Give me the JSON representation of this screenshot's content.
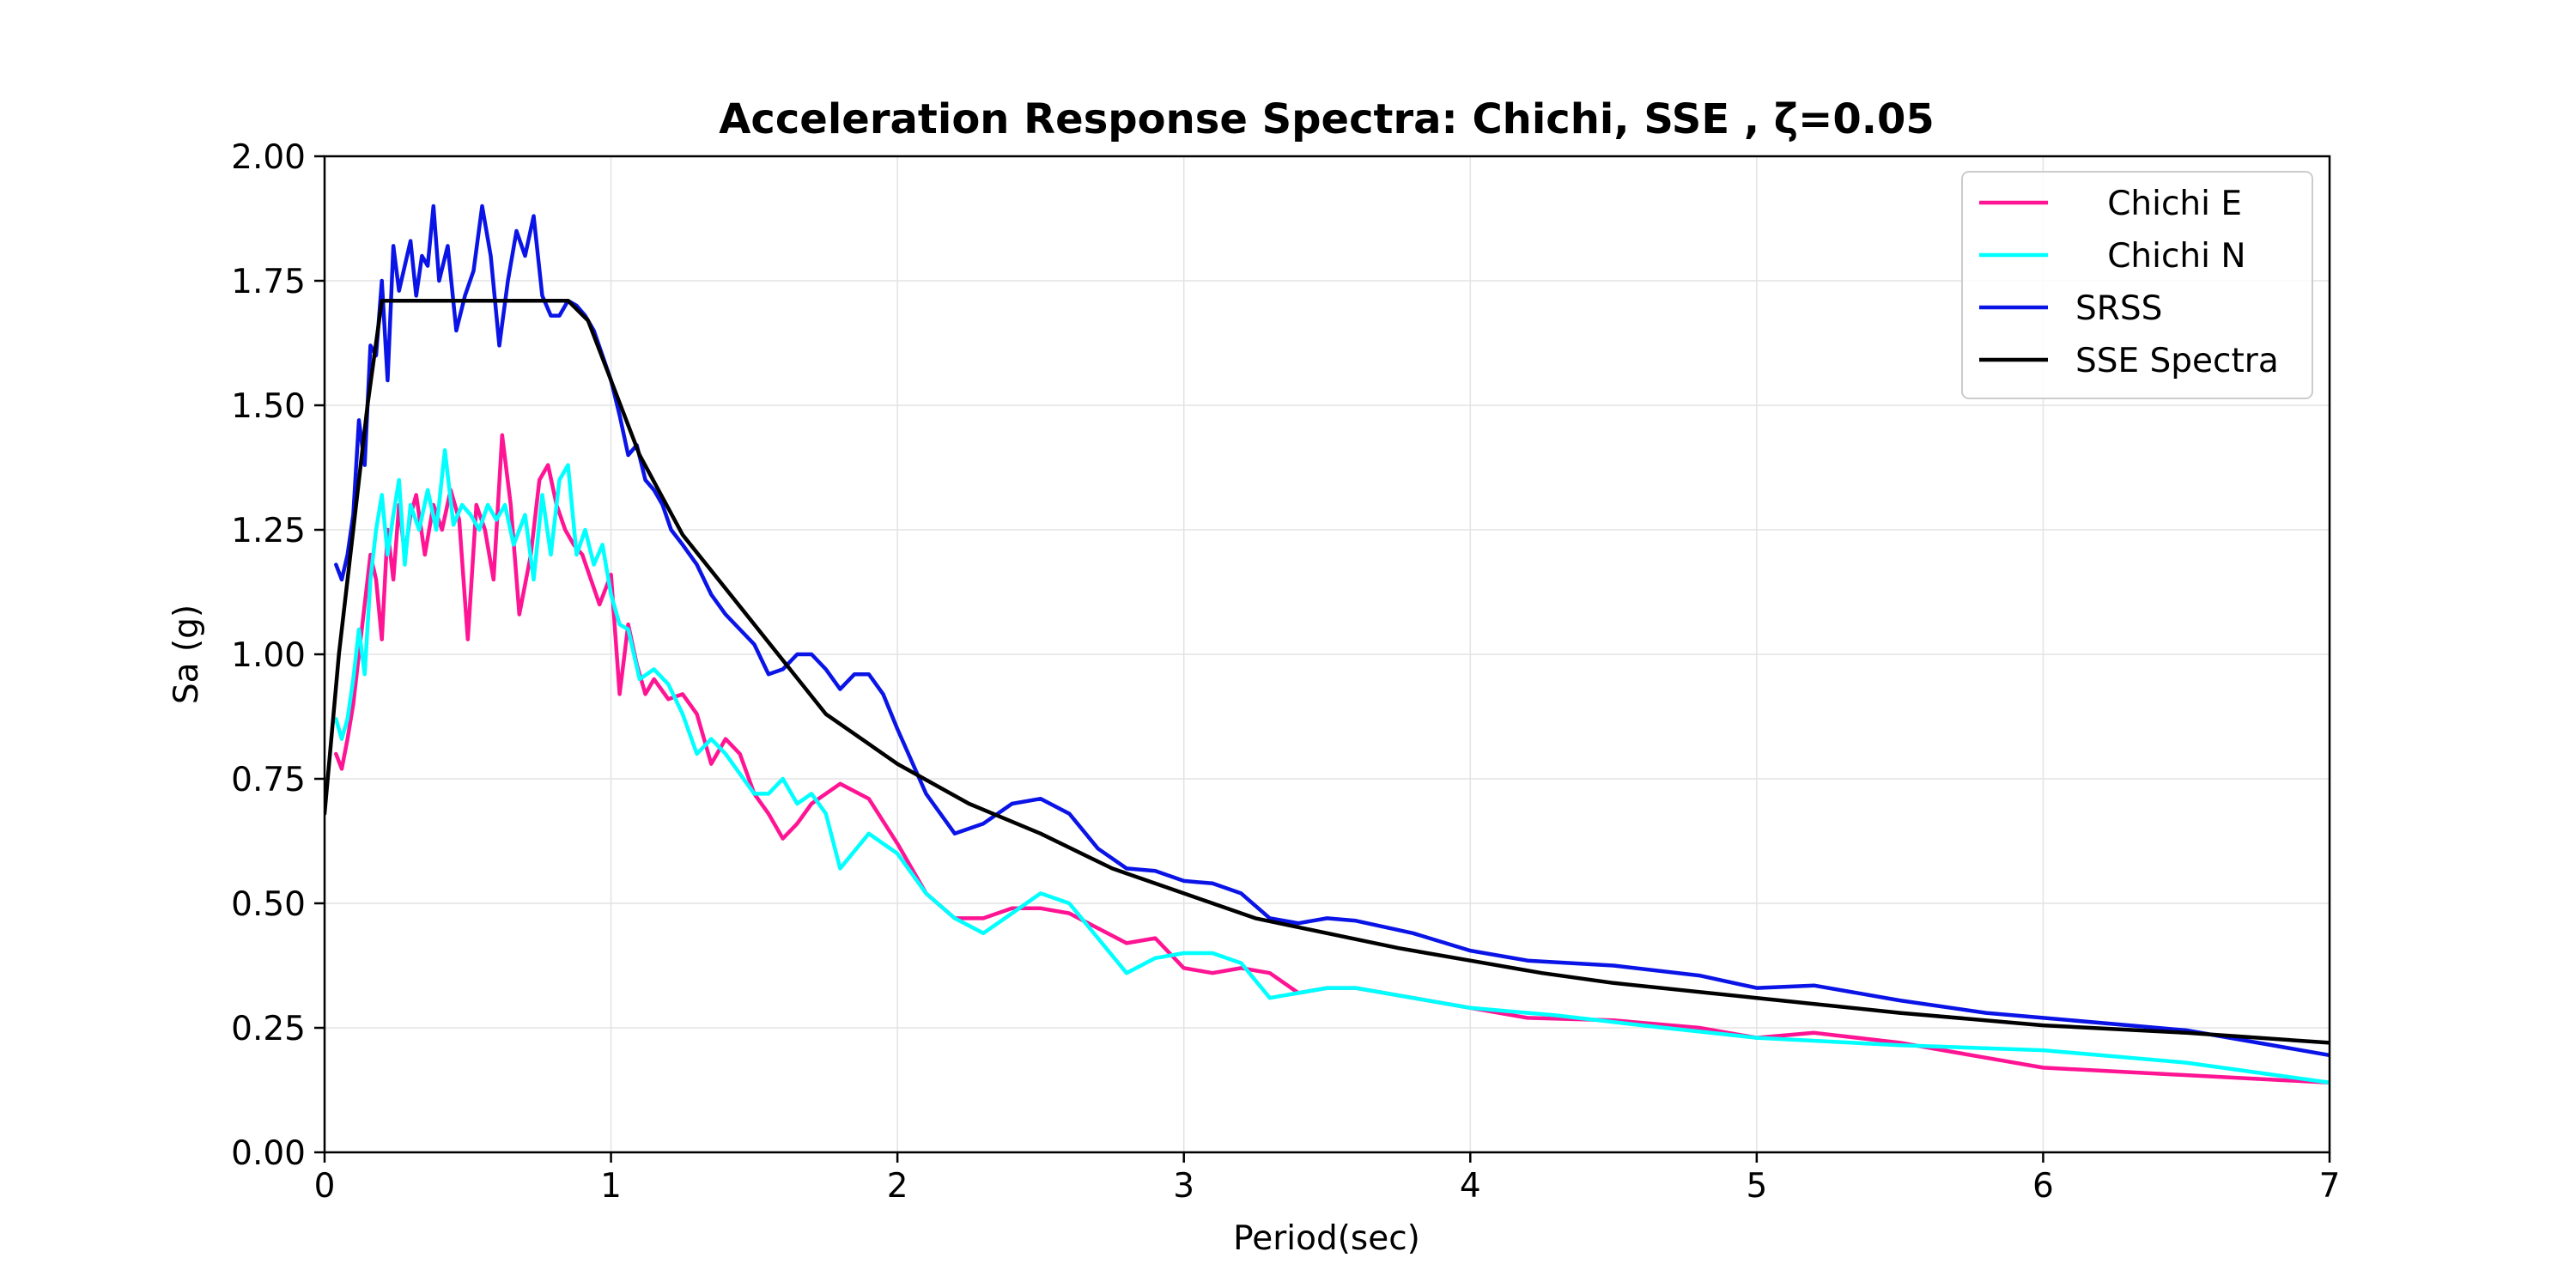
{
  "chart_data": {
    "type": "line",
    "title": "Acceleration Response Spectra:    Chichi, SSE , ζ=0.05",
    "xlabel": "Period(sec)",
    "ylabel": "Sa (g)",
    "xlim": [
      0,
      7
    ],
    "ylim": [
      0,
      2
    ],
    "xticks": [
      0,
      1,
      2,
      3,
      4,
      5,
      6,
      7
    ],
    "xtick_labels": [
      "0",
      "1",
      "2",
      "3",
      "4",
      "5",
      "6",
      "7"
    ],
    "yticks": [
      0,
      0.25,
      0.5,
      0.75,
      1.0,
      1.25,
      1.5,
      1.75,
      2.0
    ],
    "ytick_labels": [
      "0.00",
      "0.25",
      "0.50",
      "0.75",
      "1.00",
      "1.25",
      "1.50",
      "1.75",
      "2.00"
    ],
    "grid": true,
    "legend_position": "top-right",
    "series": [
      {
        "name": "   Chichi E",
        "color": "#ff1493",
        "x": [
          0.04,
          0.06,
          0.08,
          0.1,
          0.12,
          0.14,
          0.16,
          0.18,
          0.2,
          0.22,
          0.24,
          0.26,
          0.28,
          0.3,
          0.32,
          0.35,
          0.38,
          0.41,
          0.44,
          0.47,
          0.5,
          0.53,
          0.56,
          0.59,
          0.62,
          0.65,
          0.68,
          0.72,
          0.75,
          0.78,
          0.81,
          0.84,
          0.87,
          0.9,
          0.93,
          0.96,
          1.0,
          1.03,
          1.06,
          1.09,
          1.12,
          1.15,
          1.2,
          1.25,
          1.3,
          1.35,
          1.4,
          1.45,
          1.5,
          1.55,
          1.6,
          1.65,
          1.7,
          1.8,
          1.9,
          2.0,
          2.1,
          2.2,
          2.3,
          2.4,
          2.5,
          2.6,
          2.7,
          2.8,
          2.9,
          3.0,
          3.1,
          3.2,
          3.3,
          3.4,
          3.5,
          3.6,
          3.8,
          4.0,
          4.2,
          4.5,
          4.8,
          5.0,
          5.2,
          5.5,
          5.8,
          6.0,
          6.5,
          7.0
        ],
        "y": [
          0.8,
          0.77,
          0.83,
          0.9,
          1.0,
          1.1,
          1.2,
          1.15,
          1.03,
          1.25,
          1.15,
          1.3,
          1.2,
          1.28,
          1.32,
          1.2,
          1.3,
          1.25,
          1.33,
          1.27,
          1.03,
          1.3,
          1.25,
          1.15,
          1.44,
          1.3,
          1.08,
          1.2,
          1.35,
          1.38,
          1.3,
          1.25,
          1.22,
          1.2,
          1.15,
          1.1,
          1.16,
          0.92,
          1.06,
          0.98,
          0.92,
          0.95,
          0.91,
          0.92,
          0.88,
          0.78,
          0.83,
          0.8,
          0.72,
          0.68,
          0.63,
          0.66,
          0.7,
          0.74,
          0.71,
          0.62,
          0.52,
          0.47,
          0.47,
          0.49,
          0.49,
          0.48,
          0.45,
          0.42,
          0.43,
          0.37,
          0.36,
          0.37,
          0.36,
          0.32,
          0.33,
          0.33,
          0.31,
          0.29,
          0.27,
          0.265,
          0.25,
          0.23,
          0.24,
          0.22,
          0.19,
          0.17,
          0.155,
          0.14
        ]
      },
      {
        "name": "   Chichi N",
        "color": "#00ffff",
        "x": [
          0.04,
          0.06,
          0.08,
          0.1,
          0.12,
          0.14,
          0.16,
          0.18,
          0.2,
          0.22,
          0.24,
          0.26,
          0.28,
          0.3,
          0.33,
          0.36,
          0.39,
          0.42,
          0.45,
          0.48,
          0.51,
          0.54,
          0.57,
          0.6,
          0.63,
          0.66,
          0.7,
          0.73,
          0.76,
          0.79,
          0.82,
          0.85,
          0.88,
          0.91,
          0.94,
          0.97,
          1.0,
          1.03,
          1.06,
          1.1,
          1.15,
          1.2,
          1.25,
          1.3,
          1.35,
          1.4,
          1.45,
          1.5,
          1.55,
          1.6,
          1.65,
          1.7,
          1.75,
          1.8,
          1.9,
          2.0,
          2.1,
          2.2,
          2.3,
          2.4,
          2.5,
          2.6,
          2.7,
          2.8,
          2.9,
          3.0,
          3.1,
          3.2,
          3.3,
          3.4,
          3.5,
          3.6,
          3.8,
          4.0,
          4.3,
          4.6,
          5.0,
          5.5,
          6.0,
          6.5,
          7.0
        ],
        "y": [
          0.87,
          0.83,
          0.87,
          0.95,
          1.05,
          0.96,
          1.15,
          1.25,
          1.32,
          1.2,
          1.28,
          1.35,
          1.18,
          1.3,
          1.25,
          1.33,
          1.25,
          1.41,
          1.26,
          1.3,
          1.28,
          1.25,
          1.3,
          1.27,
          1.3,
          1.22,
          1.28,
          1.15,
          1.32,
          1.2,
          1.35,
          1.38,
          1.2,
          1.25,
          1.18,
          1.22,
          1.12,
          1.06,
          1.05,
          0.95,
          0.97,
          0.94,
          0.88,
          0.8,
          0.83,
          0.8,
          0.76,
          0.72,
          0.72,
          0.75,
          0.7,
          0.72,
          0.68,
          0.57,
          0.64,
          0.6,
          0.52,
          0.47,
          0.44,
          0.48,
          0.52,
          0.5,
          0.43,
          0.36,
          0.39,
          0.4,
          0.4,
          0.38,
          0.31,
          0.32,
          0.33,
          0.33,
          0.31,
          0.29,
          0.275,
          0.255,
          0.23,
          0.215,
          0.205,
          0.18,
          0.14
        ]
      },
      {
        "name": "SRSS",
        "color": "#0a14e6",
        "x": [
          0.04,
          0.06,
          0.08,
          0.1,
          0.12,
          0.14,
          0.16,
          0.18,
          0.2,
          0.22,
          0.24,
          0.26,
          0.28,
          0.3,
          0.32,
          0.34,
          0.36,
          0.38,
          0.4,
          0.43,
          0.46,
          0.49,
          0.52,
          0.55,
          0.58,
          0.61,
          0.64,
          0.67,
          0.7,
          0.73,
          0.76,
          0.79,
          0.82,
          0.85,
          0.88,
          0.91,
          0.94,
          0.97,
          1.0,
          1.03,
          1.06,
          1.09,
          1.12,
          1.15,
          1.18,
          1.21,
          1.25,
          1.3,
          1.35,
          1.4,
          1.45,
          1.5,
          1.55,
          1.6,
          1.65,
          1.7,
          1.75,
          1.8,
          1.85,
          1.9,
          1.95,
          2.0,
          2.1,
          2.2,
          2.3,
          2.4,
          2.5,
          2.6,
          2.7,
          2.8,
          2.9,
          3.0,
          3.1,
          3.2,
          3.3,
          3.4,
          3.5,
          3.6,
          3.8,
          4.0,
          4.2,
          4.5,
          4.8,
          5.0,
          5.2,
          5.5,
          5.8,
          6.0,
          6.5,
          7.0
        ],
        "y": [
          1.18,
          1.15,
          1.2,
          1.28,
          1.47,
          1.38,
          1.62,
          1.6,
          1.75,
          1.55,
          1.82,
          1.73,
          1.78,
          1.83,
          1.72,
          1.8,
          1.78,
          1.9,
          1.75,
          1.82,
          1.65,
          1.72,
          1.77,
          1.9,
          1.8,
          1.62,
          1.75,
          1.85,
          1.8,
          1.88,
          1.72,
          1.68,
          1.68,
          1.71,
          1.7,
          1.68,
          1.65,
          1.6,
          1.55,
          1.48,
          1.4,
          1.42,
          1.35,
          1.33,
          1.3,
          1.25,
          1.22,
          1.18,
          1.12,
          1.08,
          1.05,
          1.02,
          0.96,
          0.97,
          1.0,
          1.0,
          0.97,
          0.93,
          0.96,
          0.96,
          0.92,
          0.85,
          0.72,
          0.64,
          0.66,
          0.7,
          0.71,
          0.68,
          0.61,
          0.57,
          0.565,
          0.545,
          0.54,
          0.52,
          0.47,
          0.46,
          0.47,
          0.465,
          0.44,
          0.405,
          0.385,
          0.375,
          0.355,
          0.33,
          0.335,
          0.305,
          0.28,
          0.27,
          0.245,
          0.195
        ]
      },
      {
        "name": "SSE Spectra",
        "color": "#000000",
        "x": [
          0.0,
          0.05,
          0.1,
          0.15,
          0.2,
          0.3,
          0.5,
          0.7,
          0.85,
          0.92,
          1.0,
          1.1,
          1.25,
          1.5,
          1.75,
          2.0,
          2.25,
          2.5,
          2.75,
          3.0,
          3.25,
          3.5,
          3.75,
          4.0,
          4.25,
          4.5,
          5.0,
          5.5,
          6.0,
          6.5,
          7.0
        ],
        "y": [
          0.68,
          1.0,
          1.25,
          1.5,
          1.71,
          1.71,
          1.71,
          1.71,
          1.71,
          1.67,
          1.55,
          1.4,
          1.24,
          1.06,
          0.88,
          0.78,
          0.7,
          0.64,
          0.57,
          0.52,
          0.47,
          0.44,
          0.41,
          0.385,
          0.36,
          0.34,
          0.31,
          0.28,
          0.255,
          0.24,
          0.22
        ]
      }
    ]
  }
}
